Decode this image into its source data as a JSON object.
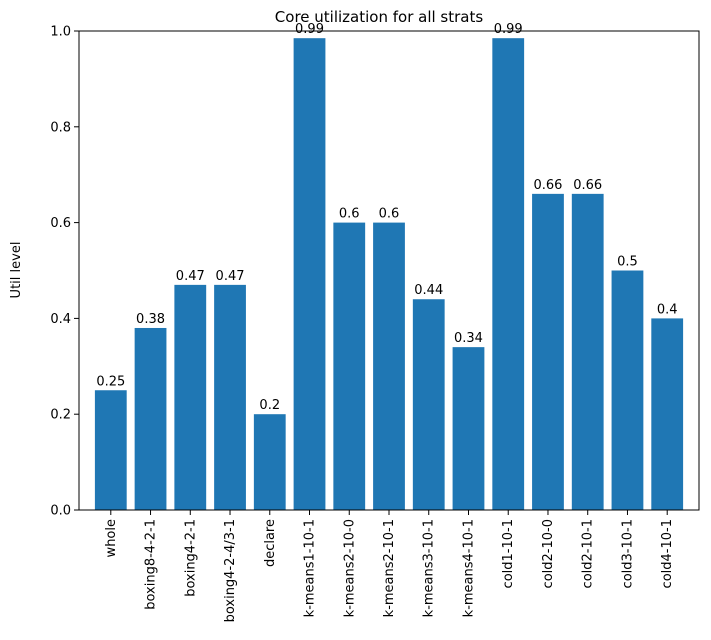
{
  "chart_data": {
    "type": "bar",
    "title": "Core utilization for all strats",
    "xlabel": "",
    "ylabel": "Util level",
    "ylim": [
      0,
      1.0
    ],
    "yticks": [
      "0.0",
      "0.2",
      "0.4",
      "0.6",
      "0.8",
      "1.0"
    ],
    "grid": false,
    "bar_color": "#1f77b4",
    "categories": [
      "whole",
      "boxing8-4-2-1",
      "boxing4-2-1",
      "boxing4-2-4/3-1",
      "declare",
      "k-means1-10-1",
      "k-means2-10-0",
      "k-means2-10-1",
      "k-means3-10-1",
      "k-means4-10-1",
      "cold1-10-1",
      "cold2-10-0",
      "cold2-10-1",
      "cold3-10-1",
      "cold4-10-1"
    ],
    "values": [
      0.25,
      0.38,
      0.47,
      0.47,
      0.2,
      0.985,
      0.6,
      0.6,
      0.44,
      0.34,
      0.985,
      0.66,
      0.66,
      0.5,
      0.4
    ],
    "data_labels": [
      "0.25",
      "0.38",
      "0.47",
      "0.47",
      "0.2",
      "0.99",
      "0.6",
      "0.6",
      "0.44",
      "0.34",
      "0.99",
      "0.66",
      "0.66",
      "0.5",
      "0.4"
    ]
  }
}
